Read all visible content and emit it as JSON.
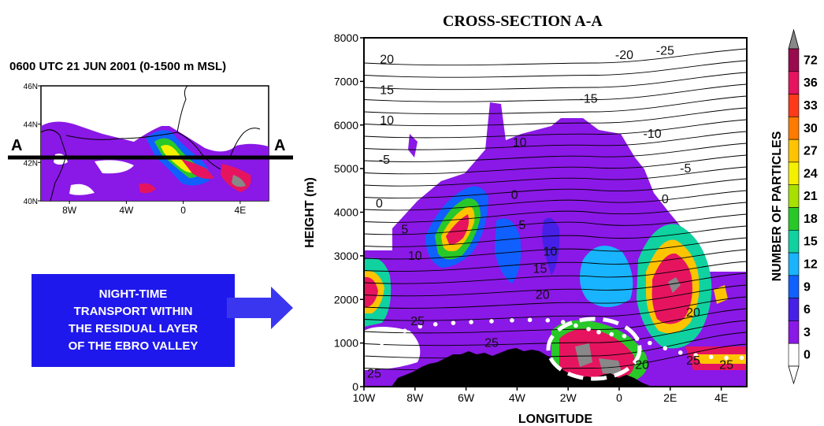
{
  "map": {
    "title": "0600 UTC 21 JUN 2001 (0-1500 m MSL)",
    "section_label_left": "A",
    "section_label_right": "A",
    "lat_ticks": [
      {
        "value": 46,
        "label": "46N"
      },
      {
        "value": 44,
        "label": "44N"
      },
      {
        "value": 42,
        "label": "42N"
      },
      {
        "value": 40,
        "label": "40N"
      }
    ],
    "lon_ticks": [
      {
        "value": -8,
        "label": "8W"
      },
      {
        "value": -4,
        "label": "4W"
      },
      {
        "value": 0,
        "label": "0"
      },
      {
        "value": 4,
        "label": "4E"
      }
    ],
    "section_lat": 42
  },
  "callout": {
    "lines": [
      "NIGHT-TIME",
      "TRANSPORT WITHIN",
      "THE RESIDUAL LAYER",
      "OF THE EBRO VALLEY"
    ]
  },
  "chart_data": {
    "type": "heatmap",
    "title": "CROSS-SECTION A-A",
    "xlabel": "LONGITUDE",
    "ylabel": "HEIGHT (m)",
    "xlim": [
      -10,
      5
    ],
    "ylim": [
      0,
      8000
    ],
    "x_ticks": [
      {
        "value": -10,
        "label": "10W"
      },
      {
        "value": -8,
        "label": "8W"
      },
      {
        "value": -6,
        "label": "6W"
      },
      {
        "value": -4,
        "label": "4W"
      },
      {
        "value": -2,
        "label": "2W"
      },
      {
        "value": 0,
        "label": "0"
      },
      {
        "value": 2,
        "label": "2E"
      },
      {
        "value": 4,
        "label": "4E"
      }
    ],
    "y_ticks": [
      0,
      1000,
      2000,
      3000,
      4000,
      5000,
      6000,
      7000,
      8000
    ],
    "colorbar": {
      "label": "NUMBER OF PARTICLES",
      "levels": [
        "72",
        "36",
        "33",
        "30",
        "27",
        "24",
        "21",
        "18",
        "15",
        "12",
        "9",
        "6",
        "3",
        "0"
      ],
      "colors": [
        "#9a0a4e",
        "#e6145f",
        "#ff3a1a",
        "#ff7a00",
        "#ffc400",
        "#f5f000",
        "#a8e000",
        "#28c828",
        "#10d2a0",
        "#18b4ff",
        "#1060ff",
        "#4620e6",
        "#8a18e6",
        "#ffffff"
      ],
      "over_color": "#888888"
    },
    "contour_labels": [
      {
        "x": -9.1,
        "y": 7500,
        "label": "20"
      },
      {
        "x": -9.1,
        "y": 6800,
        "label": "15"
      },
      {
        "x": -9.1,
        "y": 6100,
        "label": "10"
      },
      {
        "x": -9.2,
        "y": 5200,
        "label": "-5"
      },
      {
        "x": -9.4,
        "y": 4200,
        "label": "0"
      },
      {
        "x": -8.4,
        "y": 3600,
        "label": "5"
      },
      {
        "x": -8.0,
        "y": 3000,
        "label": "10"
      },
      {
        "x": 0.2,
        "y": 7600,
        "label": "-20"
      },
      {
        "x": 1.8,
        "y": 7700,
        "label": "-25"
      },
      {
        "x": -1.2,
        "y": 6600,
        "label": "-15"
      },
      {
        "x": 1.3,
        "y": 5800,
        "label": "-10"
      },
      {
        "x": 2.6,
        "y": 5000,
        "label": "-5"
      },
      {
        "x": 1.8,
        "y": 4300,
        "label": "0"
      },
      {
        "x": -3.9,
        "y": 5600,
        "label": "10"
      },
      {
        "x": -4.1,
        "y": 4400,
        "label": "0"
      },
      {
        "x": -3.8,
        "y": 3700,
        "label": "5"
      },
      {
        "x": -2.7,
        "y": 3100,
        "label": "10"
      },
      {
        "x": -3.1,
        "y": 2700,
        "label": "15"
      },
      {
        "x": -3.0,
        "y": 2100,
        "label": "20"
      },
      {
        "x": -7.9,
        "y": 1500,
        "label": "25"
      },
      {
        "x": -5.0,
        "y": 1000,
        "label": "25"
      },
      {
        "x": -9.6,
        "y": 300,
        "label": "25"
      },
      {
        "x": 2.9,
        "y": 1700,
        "label": "20"
      },
      {
        "x": 0.9,
        "y": 500,
        "label": "20"
      },
      {
        "x": 2.9,
        "y": 600,
        "label": "25"
      },
      {
        "x": 4.2,
        "y": 500,
        "label": "25"
      }
    ],
    "mixing_height_dots": [
      {
        "x": -10,
        "y": 750
      },
      {
        "x": -9.7,
        "y": 850
      },
      {
        "x": -9.3,
        "y": 1000
      },
      {
        "x": -8.9,
        "y": 1150
      },
      {
        "x": -8.4,
        "y": 1280
      },
      {
        "x": -7.8,
        "y": 1380
      },
      {
        "x": -7.2,
        "y": 1430
      },
      {
        "x": -6.5,
        "y": 1460
      },
      {
        "x": -5.8,
        "y": 1480
      },
      {
        "x": -5.0,
        "y": 1500
      },
      {
        "x": -4.2,
        "y": 1520
      },
      {
        "x": -3.5,
        "y": 1530
      },
      {
        "x": -2.8,
        "y": 1520
      },
      {
        "x": -2.2,
        "y": 1480
      },
      {
        "x": -1.7,
        "y": 1400
      },
      {
        "x": -1.2,
        "y": 1320
      },
      {
        "x": -0.8,
        "y": 1250
      },
      {
        "x": -0.3,
        "y": 1200
      },
      {
        "x": 0.2,
        "y": 1160
      },
      {
        "x": 0.7,
        "y": 1100
      },
      {
        "x": 1.2,
        "y": 1000
      },
      {
        "x": 1.8,
        "y": 880
      },
      {
        "x": 2.4,
        "y": 780
      },
      {
        "x": 3.0,
        "y": 720
      },
      {
        "x": 3.6,
        "y": 680
      },
      {
        "x": 4.2,
        "y": 660
      },
      {
        "x": 4.8,
        "y": 660
      }
    ]
  }
}
